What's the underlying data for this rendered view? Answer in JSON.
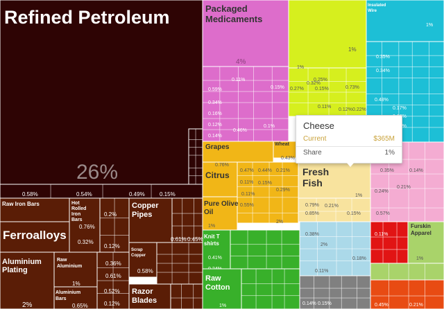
{
  "chart_data": {
    "type": "treemap",
    "colors": {
      "mineral_products": "#2e0404",
      "metals": "#5a1d06",
      "chemical_products": "#dd6dcb",
      "vegetable_products": "#d6ef1e",
      "machines": "#1dbfd6",
      "foodstuffs": "#f1b617",
      "animal_products": "#f8e39e",
      "textiles": "#38b02a",
      "instruments": "#abd9e9",
      "stone_and_glass": "#f4acd2",
      "plastics_and_rubbers": "#808080",
      "transportation": "#e84b13",
      "animal_hides": "#a9d36a",
      "weapons": "#e11414"
    },
    "tiles": [
      {
        "name": "Refined Petroleum",
        "share": "26%",
        "group": "mineral_products"
      },
      {
        "name": "Raw Iron Bars",
        "group": "metals"
      },
      {
        "name": "Hot Rolled Iron Bars",
        "group": "metals"
      },
      {
        "name": "Copper Pipes",
        "group": "metals"
      },
      {
        "name": "Ferroalloys",
        "share": "2%",
        "group": "metals"
      },
      {
        "name": "Raw Aluminium",
        "group": "metals"
      },
      {
        "name": "Aluminium Plating",
        "share": "2%",
        "group": "metals"
      },
      {
        "name": "Aluminium Bars",
        "group": "metals"
      },
      {
        "name": "Scrap Copper",
        "group": "metals"
      },
      {
        "name": "Razor Blades",
        "group": "metals"
      },
      {
        "name": "Packaged Medicaments",
        "share": "4%",
        "group": "chemical_products"
      },
      {
        "name": "Insulated Wire",
        "group": "machines"
      },
      {
        "name": "Grapes",
        "group": "vegetable_products"
      },
      {
        "name": "Wheat",
        "group": "vegetable_products"
      },
      {
        "name": "Citrus",
        "group": "vegetable_products"
      },
      {
        "name": "Pure Olive Oil",
        "group": "foodstuffs"
      },
      {
        "name": "Fresh Fish",
        "group": "animal_products"
      },
      {
        "name": "Cheese",
        "group": "animal_products"
      },
      {
        "name": "Knit T shirts",
        "group": "textiles"
      },
      {
        "name": "Raw Cotton",
        "group": "textiles"
      },
      {
        "name": "Furskin Apparel",
        "group": "animal_hides"
      }
    ],
    "value_labels": [
      "0.58%",
      "0.54%",
      "0.49%",
      "0.15%",
      "0.76%",
      "0.2%",
      "0.32%",
      "0.12%",
      "1%",
      "0.61%",
      "0.45%",
      "0.36%",
      "0.61%",
      "0.58%",
      "0.16%",
      "0.12%",
      "0.65%",
      "0.52%",
      "0.12%",
      "0.15%",
      "0.59%",
      "0.11%",
      "0.34%",
      "0.16%",
      "0.14%",
      "0.46%",
      "0.12%",
      "0.1%",
      "0.32%",
      "0.27%",
      "0.25%",
      "0.15%",
      "0.73%",
      "0.11%",
      "0.12%",
      "0.22%",
      "0.35%",
      "0.34%",
      "0.48%",
      "0.17%",
      "0.18%",
      "0.12%",
      "0.76%",
      "0.47%",
      "0.44%",
      "0.21%",
      "0.43%",
      "0.11%",
      "0.29%",
      "0.55%",
      "0.15%",
      "0.11%",
      "0.79%",
      "0.85%",
      "0.21%",
      "0.15%",
      "0.35%",
      "0.14%",
      "0.24%",
      "0.21%",
      "0.57%",
      "0.16%",
      "0.41%",
      "0.24%",
      "0.38%",
      "0.18%",
      "0.11%",
      "0.14%",
      "0.15%",
      "0.11%",
      "0.45%",
      "0.21%"
    ],
    "tooltip": {
      "title": "Cheese",
      "current_label": "Current",
      "current_value": "$365M",
      "share_label": "Share",
      "share_value": "1%"
    },
    "xlabel": "",
    "ylabel": ""
  }
}
